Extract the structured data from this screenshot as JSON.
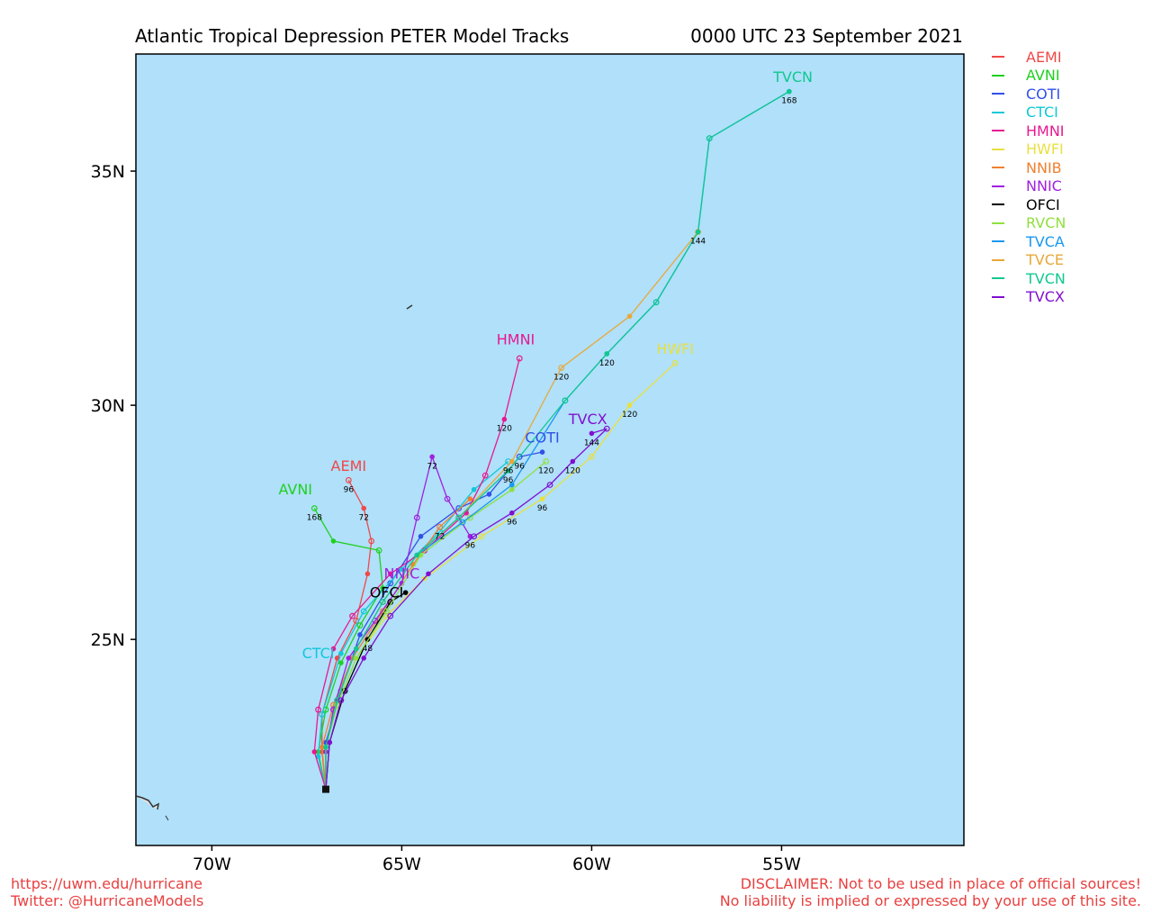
{
  "header": {
    "title": "Atlantic Tropical Depression PETER Model Tracks",
    "datetime": "0000 UTC 23 September 2021"
  },
  "footer": {
    "url": "https://uwm.edu/hurricane",
    "twitter": "Twitter: @HurricaneModels",
    "disclaimer_1": "DISCLAIMER: Not to be used in place of official sources!",
    "disclaimer_2": "No liability is implied or expressed by your use of this site."
  },
  "map": {
    "lon_range": [
      -72,
      -50.2
    ],
    "lat_range": [
      20.6,
      37.5
    ],
    "ocean_color": "#b0e0fa",
    "origin": {
      "lon": -67.0,
      "lat": 21.8
    },
    "x_ticks": [
      {
        "lon": -70,
        "label": "70W"
      },
      {
        "lon": -65,
        "label": "65W"
      },
      {
        "lon": -60,
        "label": "60W"
      },
      {
        "lon": -55,
        "label": "55W"
      }
    ],
    "y_ticks": [
      {
        "lat": 25,
        "label": "25N"
      },
      {
        "lat": 30,
        "label": "30N"
      },
      {
        "lat": 35,
        "label": "35N"
      }
    ]
  },
  "legend": [
    {
      "name": "AEMI",
      "color": "#f04848"
    },
    {
      "name": "AVNI",
      "color": "#20d020"
    },
    {
      "name": "COTI",
      "color": "#3050e8"
    },
    {
      "name": "CTCI",
      "color": "#10c8d8"
    },
    {
      "name": "HMNI",
      "color": "#e81890"
    },
    {
      "name": "HWFI",
      "color": "#e8e040"
    },
    {
      "name": "NNIB",
      "color": "#f08030"
    },
    {
      "name": "NNIC",
      "color": "#a020e0"
    },
    {
      "name": "OFCI",
      "color": "#000000"
    },
    {
      "name": "RVCN",
      "color": "#90e040"
    },
    {
      "name": "TVCA",
      "color": "#1898f0"
    },
    {
      "name": "TVCE",
      "color": "#e8a838"
    },
    {
      "name": "TVCN",
      "color": "#10c890"
    },
    {
      "name": "TVCX",
      "color": "#8010d0"
    }
  ],
  "tracks": [
    {
      "model": "AEMI",
      "color": "#f04848",
      "label": "AEMI",
      "points": [
        [
          -67.0,
          21.8
        ],
        [
          -67.1,
          22.6
        ],
        [
          -67.1,
          23.4
        ],
        [
          -66.7,
          24.6
        ],
        [
          -66.2,
          25.4
        ],
        [
          -65.9,
          26.4
        ],
        [
          -65.8,
          27.1
        ],
        [
          -66.0,
          27.8
        ],
        [
          -66.4,
          28.4
        ]
      ],
      "hours": [
        {
          "i": 7,
          "h": "72"
        },
        {
          "i": 8,
          "h": "96"
        }
      ]
    },
    {
      "model": "AVNI",
      "color": "#20d020",
      "label": "AVNI",
      "points": [
        [
          -67.0,
          21.8
        ],
        [
          -67.2,
          22.6
        ],
        [
          -67.0,
          23.5
        ],
        [
          -66.6,
          24.5
        ],
        [
          -66.1,
          25.3
        ],
        [
          -65.5,
          26.1
        ],
        [
          -65.6,
          26.9
        ],
        [
          -66.8,
          27.1
        ],
        [
          -67.3,
          27.8
        ]
      ],
      "hours": [
        {
          "i": 8,
          "h": "168"
        }
      ]
    },
    {
      "model": "COTI",
      "color": "#3050e8",
      "label": "COTI",
      "points": [
        [
          -67.0,
          21.8
        ],
        [
          -67.0,
          22.8
        ],
        [
          -66.6,
          23.9
        ],
        [
          -66.1,
          25.1
        ],
        [
          -65.3,
          26.2
        ],
        [
          -64.5,
          27.2
        ],
        [
          -63.5,
          27.8
        ],
        [
          -62.7,
          28.1
        ],
        [
          -61.9,
          28.9
        ],
        [
          -61.3,
          29.0
        ]
      ],
      "hours": [
        {
          "i": 8,
          "h": "96"
        }
      ]
    },
    {
      "model": "CTCI",
      "color": "#10c8d8",
      "label": "CTCI",
      "points": [
        [
          -67.0,
          21.8
        ],
        [
          -67.2,
          22.5
        ],
        [
          -67.1,
          23.4
        ],
        [
          -66.6,
          24.7
        ],
        [
          -66.0,
          25.6
        ],
        [
          -65.0,
          26.5
        ],
        [
          -64.0,
          27.3
        ],
        [
          -63.1,
          28.2
        ],
        [
          -62.2,
          28.8
        ]
      ],
      "hours": [
        {
          "i": 8,
          "h": "96"
        }
      ]
    },
    {
      "model": "HMNI",
      "color": "#e81890",
      "label": "HMNI",
      "points": [
        [
          -67.0,
          21.8
        ],
        [
          -67.3,
          22.6
        ],
        [
          -67.2,
          23.5
        ],
        [
          -66.8,
          24.8
        ],
        [
          -66.3,
          25.5
        ],
        [
          -65.3,
          26.4
        ],
        [
          -64.4,
          26.9
        ],
        [
          -63.3,
          27.7
        ],
        [
          -62.8,
          28.5
        ],
        [
          -62.3,
          29.7
        ],
        [
          -61.9,
          31.0
        ]
      ],
      "hours": [
        {
          "i": 9,
          "h": "120"
        }
      ]
    },
    {
      "model": "HWFI",
      "color": "#e8e040",
      "label": "HWFI",
      "points": [
        [
          -67.0,
          21.8
        ],
        [
          -67.0,
          22.7
        ],
        [
          -66.7,
          23.6
        ],
        [
          -66.2,
          24.6
        ],
        [
          -65.4,
          25.5
        ],
        [
          -64.4,
          26.3
        ],
        [
          -62.9,
          27.2
        ],
        [
          -61.3,
          28.0
        ],
        [
          -60.0,
          28.9
        ],
        [
          -59.0,
          30.0
        ],
        [
          -57.8,
          30.9
        ]
      ],
      "hours": [
        {
          "i": 7,
          "h": "96"
        },
        {
          "i": 9,
          "h": "120"
        }
      ]
    },
    {
      "model": "NNIB",
      "color": "#f08030",
      "label": "",
      "points": [
        [
          -67.0,
          21.8
        ],
        [
          -67.1,
          22.7
        ],
        [
          -66.8,
          23.6
        ],
        [
          -66.3,
          24.6
        ],
        [
          -65.5,
          25.6
        ],
        [
          -64.7,
          26.6
        ],
        [
          -64.0,
          27.4
        ],
        [
          -63.2,
          28.0
        ]
      ],
      "hours": [
        {
          "i": 6,
          "h": "72"
        }
      ]
    },
    {
      "model": "NNIC",
      "color": "#a020e0",
      "label": "NNIC",
      "points": [
        [
          -67.0,
          21.8
        ],
        [
          -67.0,
          22.6
        ],
        [
          -66.8,
          23.5
        ],
        [
          -66.4,
          24.6
        ],
        [
          -65.7,
          25.4
        ],
        [
          -65.0,
          26.2
        ],
        [
          -64.6,
          27.6
        ],
        [
          -64.2,
          28.9
        ],
        [
          -63.8,
          28.0
        ],
        [
          -63.2,
          27.2
        ]
      ],
      "hours": [
        {
          "i": 7,
          "h": "72"
        },
        {
          "i": 9,
          "h": "96"
        }
      ]
    },
    {
      "model": "OFCI",
      "color": "#000000",
      "label": "OFCI",
      "points": [
        [
          -67.0,
          21.8
        ],
        [
          -66.9,
          22.8
        ],
        [
          -66.5,
          23.9
        ],
        [
          -65.9,
          25.0
        ],
        [
          -65.3,
          25.8
        ],
        [
          -64.9,
          26.0
        ]
      ],
      "hours": [
        {
          "i": 3,
          "h": "48"
        }
      ]
    },
    {
      "model": "RVCN",
      "color": "#90e040",
      "label": "",
      "points": [
        [
          -67.0,
          21.8
        ],
        [
          -67.0,
          22.7
        ],
        [
          -66.7,
          23.6
        ],
        [
          -66.2,
          24.6
        ],
        [
          -65.4,
          25.6
        ],
        [
          -64.5,
          26.8
        ],
        [
          -63.2,
          27.6
        ],
        [
          -62.1,
          28.2
        ],
        [
          -61.2,
          28.8
        ]
      ],
      "hours": [
        {
          "i": 8,
          "h": "120"
        }
      ]
    },
    {
      "model": "TVCA",
      "color": "#1898f0",
      "label": "",
      "points": [
        [
          -67.0,
          21.8
        ],
        [
          -67.0,
          22.7
        ],
        [
          -66.7,
          23.7
        ],
        [
          -66.2,
          24.8
        ],
        [
          -65.5,
          25.8
        ],
        [
          -64.6,
          26.8
        ],
        [
          -63.4,
          27.5
        ],
        [
          -62.1,
          28.3
        ],
        [
          -60.7,
          30.1
        ],
        [
          -59.6,
          31.1
        ],
        [
          -58.3,
          32.2
        ],
        [
          -57.2,
          33.7
        ],
        [
          -56.9,
          35.7
        ],
        [
          -54.8,
          36.7
        ]
      ],
      "hours": [
        {
          "i": 9,
          "h": "120"
        },
        {
          "i": 11,
          "h": "144"
        },
        {
          "i": 13,
          "h": "168"
        }
      ]
    },
    {
      "model": "TVCE",
      "color": "#e8a838",
      "label": "",
      "points": [
        [
          -67.0,
          21.8
        ],
        [
          -67.0,
          22.7
        ],
        [
          -66.7,
          23.7
        ],
        [
          -66.2,
          24.8
        ],
        [
          -65.5,
          25.8
        ],
        [
          -64.6,
          26.8
        ],
        [
          -63.5,
          27.6
        ],
        [
          -62.1,
          28.8
        ],
        [
          -60.8,
          30.8
        ],
        [
          -59.0,
          31.9
        ],
        [
          -57.2,
          33.7
        ]
      ],
      "hours": [
        {
          "i": 8,
          "h": "120"
        }
      ]
    },
    {
      "model": "TVCN",
      "color": "#10c890",
      "label": "TVCN",
      "points": [
        [
          -67.0,
          21.8
        ],
        [
          -67.0,
          22.7
        ],
        [
          -66.7,
          23.7
        ],
        [
          -66.2,
          24.8
        ],
        [
          -65.5,
          25.8
        ],
        [
          -64.6,
          26.8
        ],
        [
          -63.5,
          27.6
        ],
        [
          -62.2,
          28.6
        ],
        [
          -60.7,
          30.1
        ],
        [
          -59.6,
          31.1
        ],
        [
          -58.3,
          32.2
        ],
        [
          -57.2,
          33.7
        ],
        [
          -56.9,
          35.7
        ],
        [
          -54.8,
          36.7
        ]
      ],
      "hours": [
        {
          "i": 7,
          "h": "96"
        }
      ]
    },
    {
      "model": "TVCX",
      "color": "#8010d0",
      "label": "TVCX",
      "points": [
        [
          -67.0,
          21.8
        ],
        [
          -66.9,
          22.8
        ],
        [
          -66.6,
          23.7
        ],
        [
          -66.0,
          24.6
        ],
        [
          -65.3,
          25.5
        ],
        [
          -64.3,
          26.4
        ],
        [
          -63.1,
          27.2
        ],
        [
          -62.1,
          27.7
        ],
        [
          -61.1,
          28.3
        ],
        [
          -60.5,
          28.8
        ],
        [
          -59.6,
          29.5
        ],
        [
          -60.0,
          29.4
        ]
      ],
      "hours": [
        {
          "i": 7,
          "h": "96"
        },
        {
          "i": 9,
          "h": "120"
        },
        {
          "i": 11,
          "h": "144"
        }
      ]
    }
  ],
  "track_label_positions": {
    "AEMI": [
      -66.4,
      28.6
    ],
    "AVNI": [
      -67.8,
      28.1
    ],
    "COTI": [
      -61.3,
      29.2
    ],
    "CTCI": [
      -67.2,
      24.6
    ],
    "HMNI": [
      -62.0,
      31.3
    ],
    "HWFI": [
      -57.8,
      31.1
    ],
    "NNIC": [
      -65.0,
      26.3
    ],
    "OFCI": [
      -65.4,
      25.9
    ],
    "TVCN": [
      -54.7,
      36.9
    ],
    "TVCX": [
      -60.1,
      29.6
    ]
  }
}
